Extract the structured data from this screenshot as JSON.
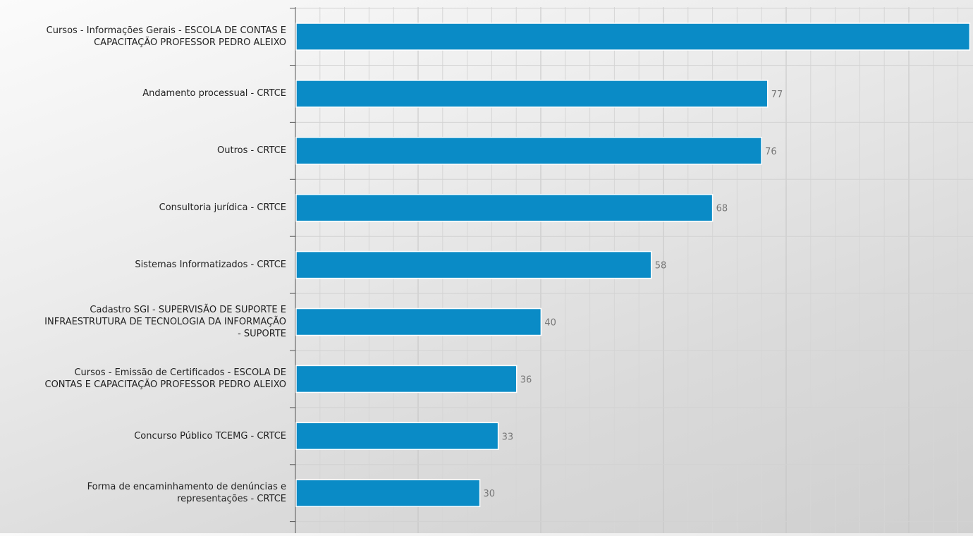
{
  "chart_data": {
    "type": "bar",
    "orientation": "horizontal",
    "categories": [
      "Cursos - Informações Gerais - ESCOLA DE CONTAS E\nCAPACITAÇÃO PROFESSOR PEDRO ALEIXO",
      "Andamento processual - CRTCE",
      "Outros - CRTCE",
      "Consultoria jurídica - CRTCE",
      "Sistemas Informatizados - CRTCE",
      "Cadastro SGI - SUPERVISÃO DE SUPORTE E\nINFRAESTRUTURA DE TECNOLOGIA DA INFORMAÇÃO\n- SUPORTE",
      "Cursos - Emissão de Certificados - ESCOLA DE\nCONTAS E CAPACITAÇÃO PROFESSOR PEDRO ALEIXO",
      "Concurso Público TCEMG - CRTCE",
      "Forma de encaminhamento de denúncias e\nrepresentações - CRTCE"
    ],
    "values": [
      110,
      77,
      76,
      68,
      58,
      40,
      36,
      33,
      30
    ],
    "data_labels": [
      "",
      "77",
      "76",
      "68",
      "58",
      "40",
      "36",
      "33",
      "30"
    ],
    "xlim": [
      0,
      110
    ],
    "grid": true,
    "bar_color": "#0a8bc6",
    "label_color": "#777777"
  }
}
